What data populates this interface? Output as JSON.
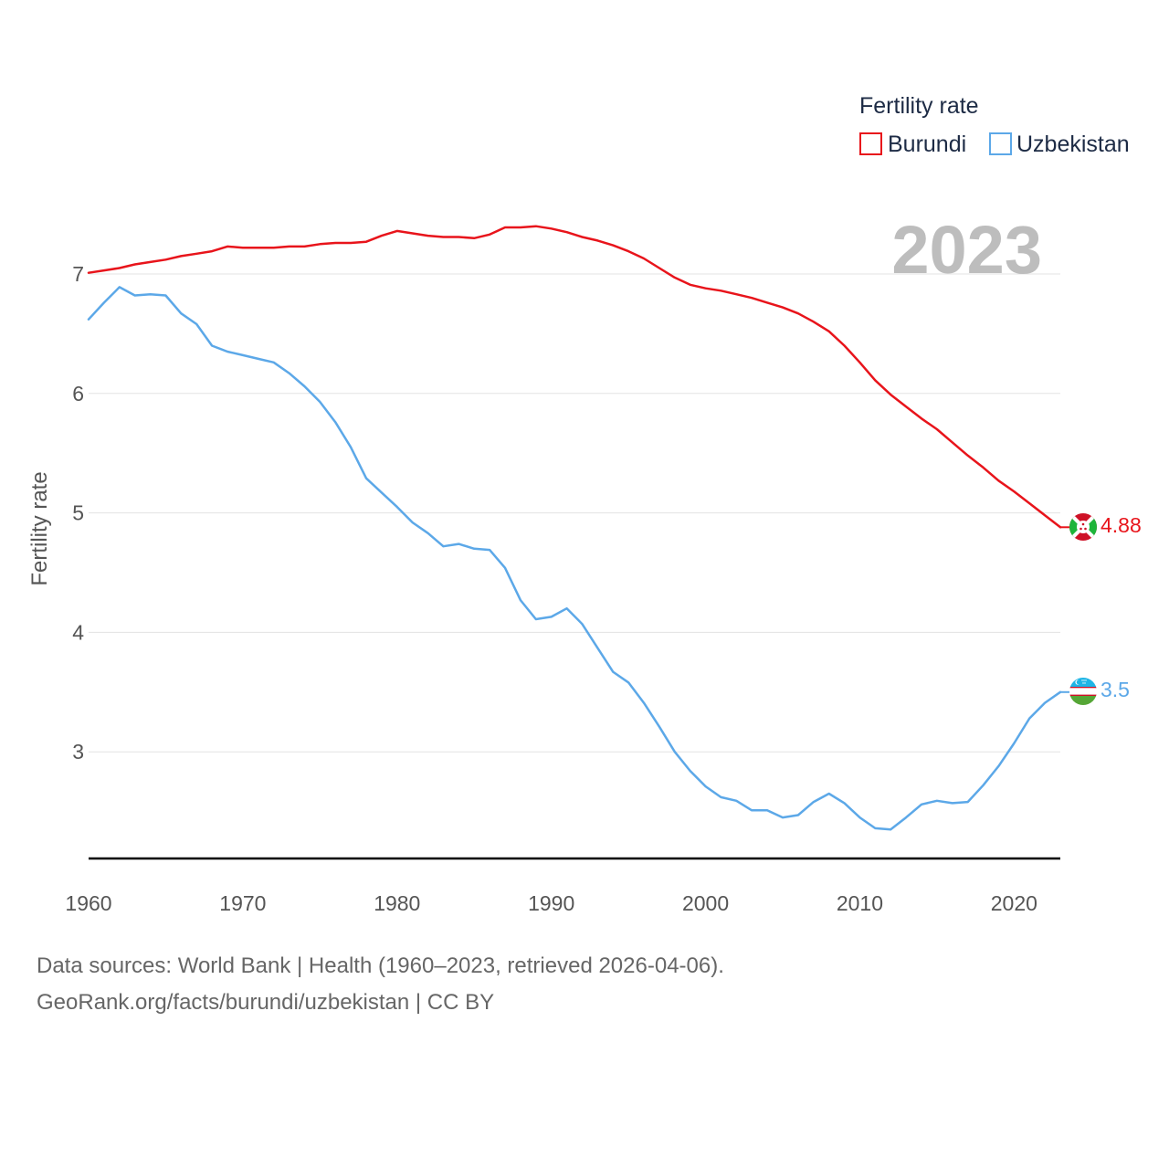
{
  "chart_data": {
    "type": "line",
    "title": "Fertility rate",
    "ylabel": "Fertility rate",
    "xlabel": "",
    "xlim": [
      1960,
      2023
    ],
    "ylim": [
      2.1,
      7.6
    ],
    "x_ticks": [
      1960,
      1970,
      1980,
      1990,
      2000,
      2010,
      2020
    ],
    "y_ticks": [
      3,
      4,
      5,
      6,
      7
    ],
    "grid": true,
    "legend_placement": "top-right",
    "current_year": "2023",
    "x": [
      1960,
      1961,
      1962,
      1963,
      1964,
      1965,
      1966,
      1967,
      1968,
      1969,
      1970,
      1971,
      1972,
      1973,
      1974,
      1975,
      1976,
      1977,
      1978,
      1979,
      1980,
      1981,
      1982,
      1983,
      1984,
      1985,
      1986,
      1987,
      1988,
      1989,
      1990,
      1991,
      1992,
      1993,
      1994,
      1995,
      1996,
      1997,
      1998,
      1999,
      2000,
      2001,
      2002,
      2003,
      2004,
      2005,
      2006,
      2007,
      2008,
      2009,
      2010,
      2011,
      2012,
      2013,
      2014,
      2015,
      2016,
      2017,
      2018,
      2019,
      2020,
      2021,
      2022,
      2023
    ],
    "series": [
      {
        "name": "Burundi",
        "color": "#e8141b",
        "end_label": "4.88",
        "flag": "burundi-flag-icon",
        "values": [
          7.01,
          7.03,
          7.05,
          7.08,
          7.1,
          7.12,
          7.15,
          7.17,
          7.19,
          7.23,
          7.22,
          7.22,
          7.22,
          7.23,
          7.23,
          7.25,
          7.26,
          7.26,
          7.27,
          7.32,
          7.36,
          7.34,
          7.32,
          7.31,
          7.31,
          7.3,
          7.33,
          7.39,
          7.39,
          7.4,
          7.38,
          7.35,
          7.31,
          7.28,
          7.24,
          7.19,
          7.13,
          7.05,
          6.97,
          6.91,
          6.88,
          6.86,
          6.83,
          6.8,
          6.76,
          6.72,
          6.67,
          6.6,
          6.52,
          6.4,
          6.26,
          6.11,
          5.99,
          5.89,
          5.79,
          5.7,
          5.59,
          5.48,
          5.38,
          5.27,
          5.18,
          5.08,
          4.98,
          4.88
        ]
      },
      {
        "name": "Uzbekistan",
        "color": "#5ca8e8",
        "end_label": "3.5",
        "flag": "uzbekistan-flag-icon",
        "values": [
          6.62,
          6.76,
          6.89,
          6.82,
          6.83,
          6.82,
          6.67,
          6.58,
          6.4,
          6.35,
          6.32,
          6.29,
          6.26,
          6.17,
          6.06,
          5.93,
          5.76,
          5.55,
          5.29,
          5.17,
          5.05,
          4.92,
          4.83,
          4.72,
          4.74,
          4.7,
          4.69,
          4.54,
          4.27,
          4.11,
          4.13,
          4.2,
          4.07,
          3.87,
          3.67,
          3.58,
          3.41,
          3.21,
          3.0,
          2.84,
          2.71,
          2.62,
          2.59,
          2.51,
          2.51,
          2.45,
          2.47,
          2.58,
          2.65,
          2.57,
          2.45,
          2.36,
          2.35,
          2.45,
          2.56,
          2.59,
          2.57,
          2.58,
          2.72,
          2.88,
          3.07,
          3.28,
          3.41,
          3.5
        ]
      }
    ]
  },
  "footer": {
    "sources": "Data sources: World Bank | Health (1960–2023, retrieved 2026-04-06).",
    "credit": "GeoRank.org/facts/burundi/uzbekistan | CC BY"
  }
}
